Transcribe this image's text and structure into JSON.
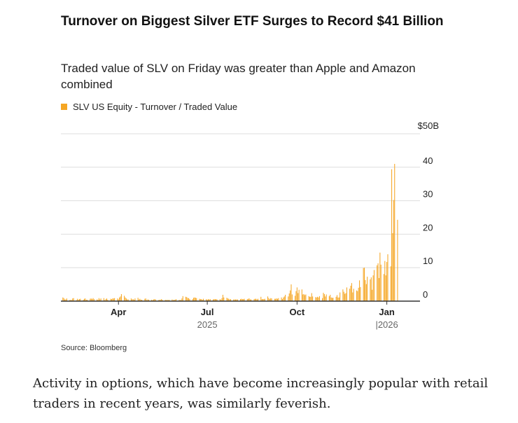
{
  "chart_data": {
    "type": "bar",
    "title": "Turnover on Biggest Silver ETF Surges to Record $41 Billion",
    "subtitle": "Traded value of SLV on Friday was greater than Apple and Amazon combined",
    "series": [
      {
        "name": "SLV US Equity - Turnover / Traded Value",
        "color": "#f5a623",
        "start": "2025-02-03",
        "values": [
          1.1,
          0.9,
          0.5,
          0.5,
          0.8,
          0.3,
          0.4,
          0.3,
          0.8,
          0.9,
          0.3,
          0.7,
          0.4,
          0.6,
          0.7,
          0.4,
          0.7,
          0.8,
          0.4,
          0.4,
          0.7,
          0.8,
          0.6,
          0.9,
          0.6,
          0.5,
          0.4,
          0.9,
          0.5,
          0.8,
          0.9,
          0.3,
          0.6,
          0.8,
          0.4,
          0.7,
          0.6,
          0.8,
          0.8,
          0.9,
          0.8,
          0.5,
          1.1,
          1.4,
          2.1,
          1.6,
          1.1,
          0.8,
          0.5,
          0.5,
          0.8,
          0.5,
          0.6,
          0.4,
          0.8,
          1.0,
          0.5,
          0.7,
          0.4,
          0.4,
          0.7,
          0.8,
          0.3,
          0.5,
          0.4,
          0.4,
          0.3,
          0.5,
          0.6,
          0.5,
          0.3,
          0.4,
          0.4,
          0.6,
          0.4,
          0.4,
          0.3,
          0.4,
          0.3,
          0.4,
          0.5,
          0.3,
          0.4,
          0.4,
          0.6,
          0.3,
          0.4,
          0.3,
          0.8,
          1.5,
          1.3,
          1.2,
          0.9,
          0.9,
          0.6,
          0.6,
          1.0,
          1.1,
          1.0,
          0.9,
          0.7,
          0.6,
          0.6,
          0.4,
          0.7,
          0.6,
          0.4,
          0.6,
          0.5,
          0.6,
          0.5,
          0.6,
          0.6,
          0.6,
          0.5,
          0.6,
          0.4,
          0.9,
          1.9,
          1.1,
          1.0,
          0.8,
          0.7,
          0.5,
          0.6,
          0.5,
          0.5,
          0.5,
          0.5,
          0.5,
          0.6,
          0.7,
          0.6,
          0.6,
          0.7,
          0.6,
          0.7,
          0.8,
          0.5,
          0.5,
          0.6,
          0.7,
          0.7,
          0.5,
          0.7,
          1.3,
          0.6,
          0.6,
          0.6,
          0.7,
          1.4,
          0.9,
          0.6,
          0.9,
          0.8,
          0.7,
          0.7,
          0.8,
          0.7,
          0.9,
          1.1,
          0.6,
          1.1,
          1.4,
          1.9,
          1.4,
          2.3,
          3.2,
          5.0,
          2.0,
          1.6,
          3.0,
          4.1,
          2.4,
          3.4,
          3.5,
          2.0,
          2.1,
          1.8,
          2.0,
          1.5,
          1.3,
          1.3,
          2.4,
          1.4,
          1.2,
          1.1,
          1.3,
          1.1,
          1.5,
          0.9,
          2.5,
          2.1,
          1.4,
          2.0,
          1.5,
          1.9,
          1.1,
          1.0,
          1.0,
          1.3,
          1.8,
          1.1,
          1.1,
          2.6,
          3.5,
          2.8,
          2.2,
          2.4,
          4.1,
          3.7,
          4.6,
          5.4,
          2.6,
          3.7,
          3.2,
          3.0,
          4.0,
          6.2,
          4.2,
          9.9,
          10.0,
          6.3,
          5.1,
          7.3,
          6.5,
          7.1,
          3.4,
          7.7,
          9.3,
          10.7,
          11.3,
          6.9,
          14.5,
          10.9,
          8.1,
          12.0,
          7.7,
          11.7,
          14.0,
          10.4,
          39.4,
          20.3,
          30.2,
          41.0,
          24.3
        ]
      }
    ],
    "x_ticks": [
      "Apr",
      "Jul",
      "Oct",
      "Jan"
    ],
    "x_tick_dates": [
      "2025-04-01",
      "2025-07-01",
      "2025-10-01",
      "2026-01-01"
    ],
    "year_labels": [
      "2025",
      "|2026"
    ],
    "year_label_dates": [
      "2025-07-01",
      "2026-01-01"
    ],
    "y_ticks": [
      "0",
      "10",
      "20",
      "30",
      "40",
      "$50B"
    ],
    "y_tick_values": [
      0,
      10,
      20,
      30,
      40,
      50
    ],
    "ylim": [
      0,
      50
    ],
    "xlim": [
      "2025-02-01",
      "2026-02-04"
    ],
    "xlabel": "",
    "ylabel": "",
    "grid": true,
    "legend_position": "top-left"
  },
  "source": "Source: Bloomberg",
  "article_text": "Activity in options, which have become increasingly popular with retail traders in recent years, was similarly feverish."
}
